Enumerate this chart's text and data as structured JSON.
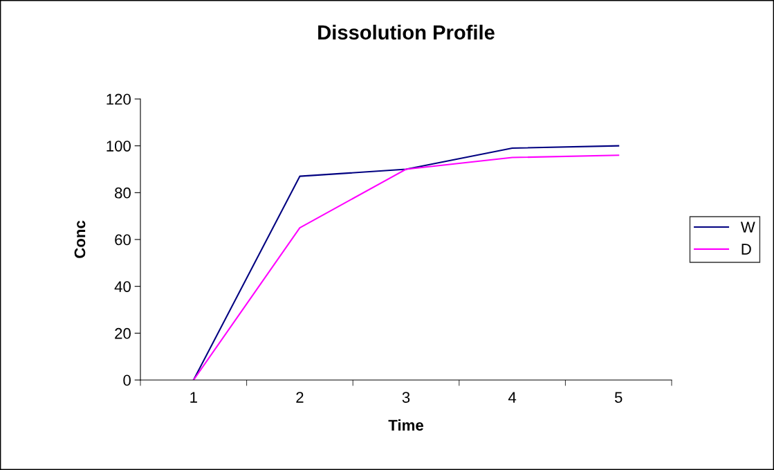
{
  "chart_data": {
    "type": "line",
    "title": "Dissolution Profile",
    "xlabel": "Time",
    "ylabel": "Conc",
    "categories": [
      "1",
      "2",
      "3",
      "4",
      "5"
    ],
    "series": [
      {
        "name": "W",
        "color": "#000080",
        "values": [
          0,
          87,
          90,
          99,
          100
        ]
      },
      {
        "name": "D",
        "color": "#ff00ff",
        "values": [
          0,
          65,
          90,
          95,
          96
        ]
      }
    ],
    "ylim": [
      0,
      120
    ],
    "yticks": [
      0,
      20,
      40,
      60,
      80,
      100,
      120
    ],
    "grid": false,
    "legend": "right",
    "marker": "none",
    "line_style": "solid"
  }
}
